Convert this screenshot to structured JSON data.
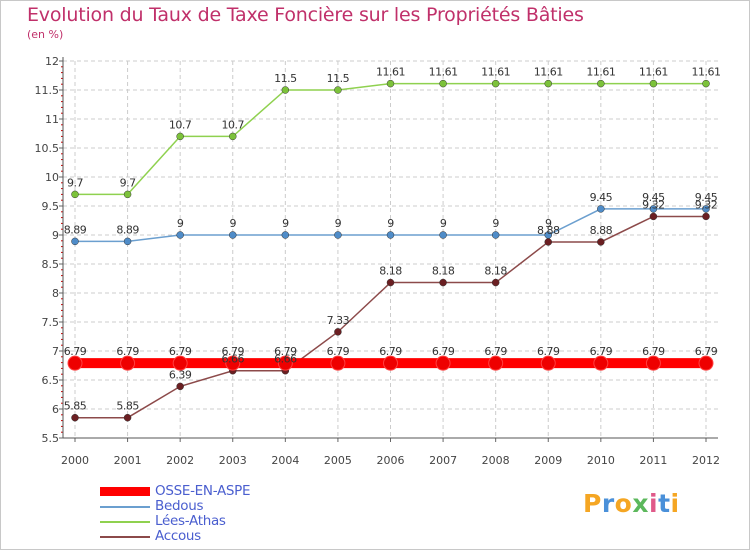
{
  "title": "Evolution du Taux de Taxe Foncière sur les Propriétés Bâties",
  "unit_label": "(en %)",
  "colors": {
    "title": "#c0306a",
    "grid": "#cccccc",
    "axis": "#444444",
    "legend_text": "#4a5ecf"
  },
  "chart_data": {
    "type": "line",
    "title": "Evolution du Taux de Taxe Foncière sur les Propriétés Bâties",
    "ylabel": "(en %)",
    "xlabel": "",
    "x": [
      "2000",
      "2001",
      "2002",
      "2003",
      "2004",
      "2005",
      "2006",
      "2007",
      "2008",
      "2009",
      "2010",
      "2011",
      "2012"
    ],
    "ylim": [
      5.5,
      12
    ],
    "yticks": [
      "5.5",
      "6",
      "6.5",
      "7",
      "7.5",
      "8",
      "8.5",
      "9",
      "9.5",
      "10",
      "10.5",
      "11",
      "11.5",
      "12"
    ],
    "grid": true,
    "series": [
      {
        "name": "Lées-Athas",
        "color": "#8fd14f",
        "marker": "#7cc23a",
        "values": [
          9.7,
          9.7,
          10.7,
          10.7,
          11.5,
          11.5,
          11.61,
          11.61,
          11.61,
          11.61,
          11.61,
          11.61,
          11.61
        ],
        "labels": [
          "9.7",
          "9.7",
          "10.7",
          "10.7",
          "11.5",
          "11.5",
          "11.61",
          "11.61",
          "11.61",
          "11.61",
          "11.61",
          "11.61",
          "11.61"
        ]
      },
      {
        "name": "Bedous",
        "color": "#6b9fcf",
        "marker": "#4f8cc8",
        "values": [
          8.89,
          8.89,
          9,
          9,
          9,
          9,
          9,
          9,
          9,
          9,
          9.45,
          9.45,
          9.45
        ],
        "labels": [
          "8.89",
          "8.89",
          "9",
          "9",
          "9",
          "9",
          "9",
          "9",
          "9",
          "9",
          "9.45",
          "9.45",
          "9.45"
        ]
      },
      {
        "name": "Accous",
        "color": "#8c4a4a",
        "marker": "#6b1f22",
        "values": [
          5.85,
          5.85,
          6.39,
          6.66,
          6.66,
          7.33,
          8.18,
          8.18,
          8.18,
          8.88,
          8.88,
          9.32,
          9.32
        ],
        "labels": [
          "5.85",
          "5.85",
          "6.39",
          "6.66",
          "6.66",
          "7.33",
          "8.18",
          "8.18",
          "8.18",
          "8.88",
          "8.88",
          "9.32",
          "9.32"
        ]
      },
      {
        "name": "OSSE-EN-ASPE",
        "color": "#ff0000",
        "marker": "#ee0000",
        "values": [
          6.79,
          6.79,
          6.79,
          6.79,
          6.79,
          6.79,
          6.79,
          6.79,
          6.79,
          6.79,
          6.79,
          6.79,
          6.79
        ],
        "labels": [
          "6.79",
          "6.79",
          "6.79",
          "6.79",
          "6.79",
          "6.79",
          "6.79",
          "6.79",
          "6.79",
          "6.79",
          "6.79",
          "6.79",
          "6.79"
        ]
      }
    ]
  },
  "legend": [
    {
      "name": "OSSE-EN-ASPE",
      "color": "#ff0000"
    },
    {
      "name": "Bedous",
      "color": "#6b9fcf"
    },
    {
      "name": "Lées-Athas",
      "color": "#8fd14f"
    },
    {
      "name": "Accous",
      "color": "#8c4a4a"
    }
  ],
  "logo": {
    "text": "Proxiti",
    "letters": [
      {
        "ch": "P",
        "color": "#f5a623"
      },
      {
        "ch": "r",
        "color": "#4a90d9"
      },
      {
        "ch": "o",
        "color": "#f5a623"
      },
      {
        "ch": "x",
        "color": "#5cb85c"
      },
      {
        "ch": "i",
        "color": "#e05a8a"
      },
      {
        "ch": "t",
        "color": "#4a90d9"
      },
      {
        "ch": "i",
        "color": "#f5a623"
      }
    ]
  }
}
